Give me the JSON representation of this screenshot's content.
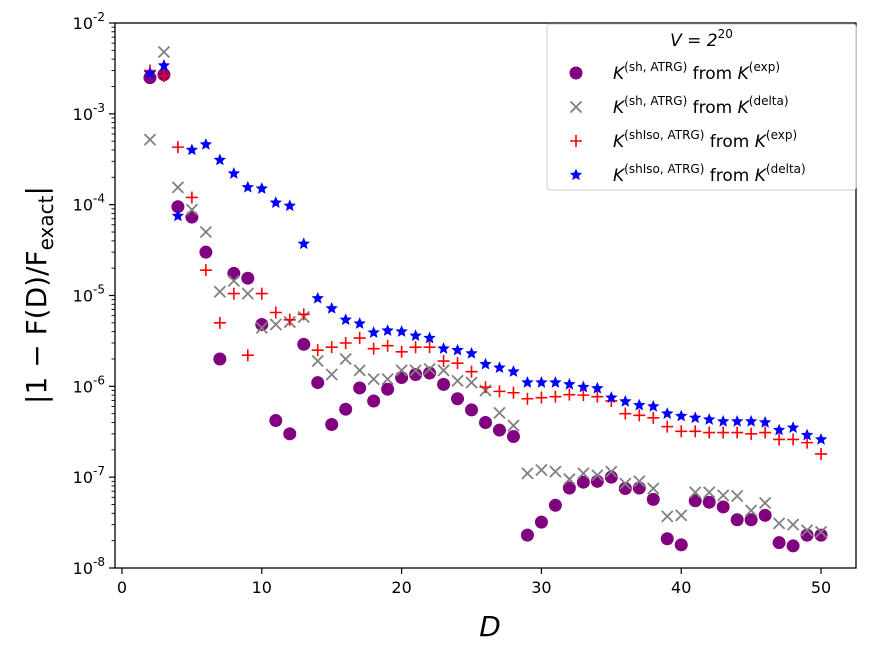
{
  "chart_data": {
    "type": "scatter",
    "title": "",
    "xlabel": "D",
    "ylabel": "|1 − F(D)/F_exact|",
    "xlim": [
      -0.5,
      52.5
    ],
    "ylim_log10": [
      -8,
      -2
    ],
    "yscale": "log",
    "grid": false,
    "legend_placement": "top-right",
    "legend_title": "V = 2^20",
    "x_ticks": [
      0,
      10,
      20,
      30,
      40,
      50
    ],
    "y_ticks": [
      {
        "exp": -8,
        "label": "10^-8"
      },
      {
        "exp": -7,
        "label": "10^-7"
      },
      {
        "exp": -6,
        "label": "10^-6"
      },
      {
        "exp": -5,
        "label": "10^-5"
      },
      {
        "exp": -4,
        "label": "10^-4"
      },
      {
        "exp": -3,
        "label": "10^-3"
      },
      {
        "exp": -2,
        "label": "10^-2"
      }
    ],
    "series": [
      {
        "name": "K^(sh, ATRG) from K^(exp)",
        "base": "K",
        "sup1": "(sh, ATRG)",
        "mid": " from K",
        "sup2": "(exp)",
        "marker": "circle",
        "color": "#800080",
        "points": [
          [
            2,
            0.0025
          ],
          [
            3,
            0.0027
          ],
          [
            4,
            9.5e-05
          ],
          [
            5,
            7.3e-05
          ],
          [
            6,
            3e-05
          ],
          [
            7,
            2e-06
          ],
          [
            8,
            1.75e-05
          ],
          [
            9,
            1.55e-05
          ],
          [
            10,
            4.8e-06
          ],
          [
            11,
            4.2e-07
          ],
          [
            12,
            3e-07
          ],
          [
            13,
            2.9e-06
          ],
          [
            14,
            1.1e-06
          ],
          [
            15,
            3.8e-07
          ],
          [
            16,
            5.6e-07
          ],
          [
            17,
            9.6e-07
          ],
          [
            18,
            6.9e-07
          ],
          [
            19,
            9.3e-07
          ],
          [
            20,
            1.25e-06
          ],
          [
            21,
            1.35e-06
          ],
          [
            22,
            1.4e-06
          ],
          [
            23,
            1.05e-06
          ],
          [
            24,
            7.3e-07
          ],
          [
            25,
            5.5e-07
          ],
          [
            26,
            4e-07
          ],
          [
            27,
            3.3e-07
          ],
          [
            28,
            2.8e-07
          ],
          [
            29,
            2.3e-08
          ],
          [
            30,
            3.2e-08
          ],
          [
            31,
            4.9e-08
          ],
          [
            32,
            7.6e-08
          ],
          [
            33,
            8.8e-08
          ],
          [
            34,
            9e-08
          ],
          [
            35,
            1e-07
          ],
          [
            36,
            7.5e-08
          ],
          [
            37,
            7.6e-08
          ],
          [
            38,
            5.7e-08
          ],
          [
            39,
            2.1e-08
          ],
          [
            40,
            1.8e-08
          ],
          [
            41,
            5.5e-08
          ],
          [
            42,
            5.3e-08
          ],
          [
            43,
            4.7e-08
          ],
          [
            44,
            3.4e-08
          ],
          [
            45,
            3.4e-08
          ],
          [
            46,
            3.8e-08
          ],
          [
            47,
            1.9e-08
          ],
          [
            48,
            1.75e-08
          ],
          [
            49,
            2.3e-08
          ],
          [
            50,
            2.3e-08
          ]
        ]
      },
      {
        "name": "K^(sh, ATRG) from K^(delta)",
        "base": "K",
        "sup1": "(sh, ATRG)",
        "mid": " from K",
        "sup2": "(delta)",
        "marker": "x",
        "color": "#808080",
        "points": [
          [
            2,
            0.00052
          ],
          [
            3,
            0.0048
          ],
          [
            4,
            0.000155
          ],
          [
            5,
            8.8e-05
          ],
          [
            6,
            5e-05
          ],
          [
            7,
            1.1e-05
          ],
          [
            8,
            1.45e-05
          ],
          [
            9,
            1.05e-05
          ],
          [
            10,
            4.4e-06
          ],
          [
            11,
            4.8e-06
          ],
          [
            12,
            5.1e-06
          ],
          [
            13,
            5.8e-06
          ],
          [
            14,
            1.9e-06
          ],
          [
            15,
            1.35e-06
          ],
          [
            16,
            2e-06
          ],
          [
            17,
            1.5e-06
          ],
          [
            18,
            1.2e-06
          ],
          [
            19,
            1.2e-06
          ],
          [
            20,
            1.5e-06
          ],
          [
            21,
            1.5e-06
          ],
          [
            22,
            1.55e-06
          ],
          [
            23,
            1.5e-06
          ],
          [
            24,
            1.15e-06
          ],
          [
            25,
            1.1e-06
          ],
          [
            26,
            9e-07
          ],
          [
            27,
            5.1e-07
          ],
          [
            28,
            3.7e-07
          ],
          [
            29,
            1.1e-07
          ],
          [
            30,
            1.2e-07
          ],
          [
            31,
            1.15e-07
          ],
          [
            32,
            9.5e-08
          ],
          [
            33,
            1.1e-07
          ],
          [
            34,
            1.05e-07
          ],
          [
            35,
            1.15e-07
          ],
          [
            36,
            8.5e-08
          ],
          [
            37,
            9e-08
          ],
          [
            38,
            7.5e-08
          ],
          [
            39,
            3.7e-08
          ],
          [
            40,
            3.8e-08
          ],
          [
            41,
            6.8e-08
          ],
          [
            42,
            6.8e-08
          ],
          [
            43,
            6.3e-08
          ],
          [
            44,
            6.2e-08
          ],
          [
            45,
            4.3e-08
          ],
          [
            46,
            5.2e-08
          ],
          [
            47,
            3.1e-08
          ],
          [
            48,
            3e-08
          ],
          [
            49,
            2.6e-08
          ],
          [
            50,
            2.5e-08
          ]
        ]
      },
      {
        "name": "K^(shIso, ATRG) from K^(exp)",
        "base": "K",
        "sup1": "(shIso, ATRG)",
        "mid": " from K",
        "sup2": "(exp)",
        "marker": "plus",
        "color": "#ff0000",
        "points": [
          [
            2,
            0.003
          ],
          [
            3,
            0.0026
          ],
          [
            4,
            0.00043
          ],
          [
            5,
            0.00012
          ],
          [
            6,
            1.9e-05
          ],
          [
            7,
            5e-06
          ],
          [
            8,
            1.05e-05
          ],
          [
            9,
            2.2e-06
          ],
          [
            10,
            1.05e-05
          ],
          [
            11,
            6.5e-06
          ],
          [
            12,
            5.4e-06
          ],
          [
            13,
            6.2e-06
          ],
          [
            14,
            2.5e-06
          ],
          [
            15,
            2.7e-06
          ],
          [
            16,
            3e-06
          ],
          [
            17,
            3.4e-06
          ],
          [
            18,
            2.6e-06
          ],
          [
            19,
            2.8e-06
          ],
          [
            20,
            2.4e-06
          ],
          [
            21,
            2.7e-06
          ],
          [
            22,
            2.7e-06
          ],
          [
            23,
            1.9e-06
          ],
          [
            24,
            1.8e-06
          ],
          [
            25,
            1.45e-06
          ],
          [
            26,
            9.8e-07
          ],
          [
            27,
            8.8e-07
          ],
          [
            28,
            8.5e-07
          ],
          [
            29,
            7.3e-07
          ],
          [
            30,
            7.5e-07
          ],
          [
            31,
            7.7e-07
          ],
          [
            32,
            8.1e-07
          ],
          [
            33,
            8e-07
          ],
          [
            34,
            7.7e-07
          ],
          [
            35,
            6.9e-07
          ],
          [
            36,
            5e-07
          ],
          [
            37,
            4.8e-07
          ],
          [
            38,
            4.5e-07
          ],
          [
            39,
            3.6e-07
          ],
          [
            40,
            3.2e-07
          ],
          [
            41,
            3.2e-07
          ],
          [
            42,
            3.1e-07
          ],
          [
            43,
            3.1e-07
          ],
          [
            44,
            3.1e-07
          ],
          [
            45,
            3e-07
          ],
          [
            46,
            3.1e-07
          ],
          [
            47,
            2.6e-07
          ],
          [
            48,
            2.6e-07
          ],
          [
            49,
            2.4e-07
          ],
          [
            50,
            1.8e-07
          ]
        ]
      },
      {
        "name": "K^(shIso, ATRG) from K^(delta)",
        "base": "K",
        "sup1": "(shIso, ATRG)",
        "mid": " from K",
        "sup2": "(delta)",
        "marker": "star",
        "color": "#0000ff",
        "points": [
          [
            2,
            0.0028
          ],
          [
            3,
            0.0034
          ],
          [
            4,
            7.5e-05
          ],
          [
            5,
            0.0004
          ],
          [
            6,
            0.00046
          ],
          [
            7,
            0.00031
          ],
          [
            8,
            0.00022
          ],
          [
            9,
            0.000155
          ],
          [
            10,
            0.00015
          ],
          [
            11,
            0.000105
          ],
          [
            12,
            9.7e-05
          ],
          [
            13,
            3.7e-05
          ],
          [
            14,
            9.3e-06
          ],
          [
            15,
            7.2e-06
          ],
          [
            16,
            5.4e-06
          ],
          [
            17,
            4.9e-06
          ],
          [
            18,
            3.9e-06
          ],
          [
            19,
            4.1e-06
          ],
          [
            20,
            4e-06
          ],
          [
            21,
            3.6e-06
          ],
          [
            22,
            3.4e-06
          ],
          [
            23,
            2.6e-06
          ],
          [
            24,
            2.5e-06
          ],
          [
            25,
            2.3e-06
          ],
          [
            26,
            1.75e-06
          ],
          [
            27,
            1.6e-06
          ],
          [
            28,
            1.45e-06
          ],
          [
            29,
            1.1e-06
          ],
          [
            30,
            1.1e-06
          ],
          [
            31,
            1.1e-06
          ],
          [
            32,
            1.05e-06
          ],
          [
            33,
            9.8e-07
          ],
          [
            34,
            9.5e-07
          ],
          [
            35,
            7.5e-07
          ],
          [
            36,
            6.8e-07
          ],
          [
            37,
            6.2e-07
          ],
          [
            38,
            6e-07
          ],
          [
            39,
            5e-07
          ],
          [
            40,
            4.7e-07
          ],
          [
            41,
            4.5e-07
          ],
          [
            42,
            4.3e-07
          ],
          [
            43,
            4.1e-07
          ],
          [
            44,
            4.1e-07
          ],
          [
            45,
            4.1e-07
          ],
          [
            46,
            4e-07
          ],
          [
            47,
            3.3e-07
          ],
          [
            48,
            3.5e-07
          ],
          [
            49,
            2.9e-07
          ],
          [
            50,
            2.6e-07
          ]
        ]
      }
    ]
  }
}
